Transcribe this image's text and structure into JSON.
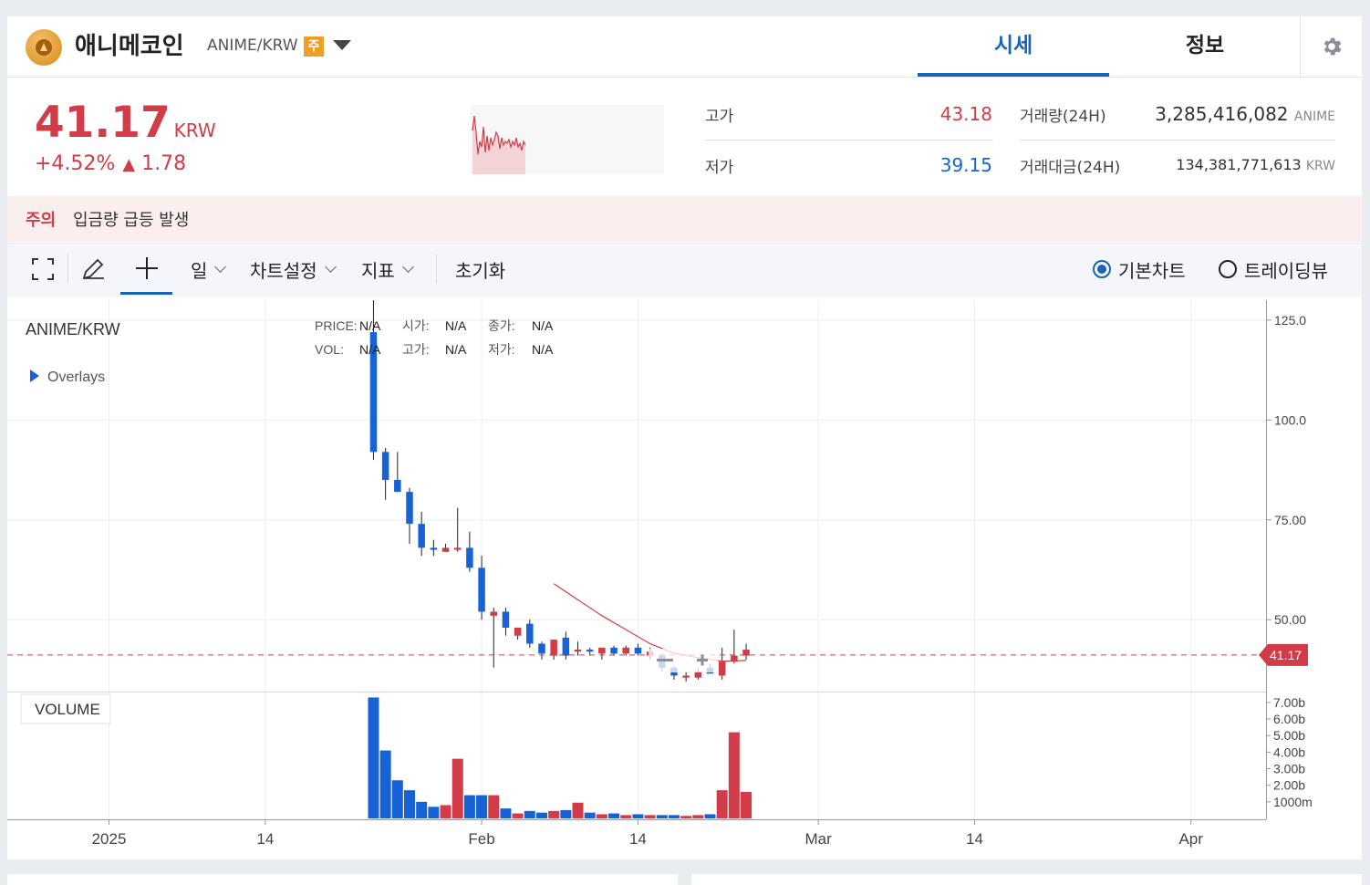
{
  "header": {
    "coin_name": "애니메코인",
    "pair": "ANIME/KRW",
    "warning_badge": "주",
    "tabs": [
      {
        "label": "시세",
        "active": true
      },
      {
        "label": "정보",
        "active": false
      }
    ]
  },
  "price": {
    "current": "41.17",
    "unit": "KRW",
    "change_pct": "+4.52%",
    "change_abs": "1.78",
    "change_arrow": "▲"
  },
  "stats": {
    "high_label": "고가",
    "high_value": "43.18",
    "low_label": "저가",
    "low_value": "39.15",
    "volume_label": "거래량(24H)",
    "volume_value": "3,285,416,082",
    "volume_unit": "ANIME",
    "amount_label": "거래대금(24H)",
    "amount_value": "134,381,771,613",
    "amount_unit": "KRW"
  },
  "notice": {
    "keyword": "주의",
    "message": "입금량 급등 발생"
  },
  "toolbar": {
    "period": "일",
    "chart_settings": "차트설정",
    "indicators": "지표",
    "reset": "초기화",
    "basic_chart": "기본차트",
    "trading_view": "트레이딩뷰"
  },
  "chart_legend": {
    "symbol": "ANIME/KRW",
    "overlays": "Overlays",
    "price_label": "PRICE:",
    "price_value": "N/A",
    "open_label": "시가:",
    "open_value": "N/A",
    "close_label": "종가:",
    "close_value": "N/A",
    "vol_label": "VOL:",
    "vol_value": "N/A",
    "high_label": "고가:",
    "high_value": "N/A",
    "low_label": "저가:",
    "low_value": "N/A",
    "volume_pane_label": "VOLUME",
    "current_price_tag": "41.17"
  },
  "colors": {
    "up": "#d23c48",
    "down": "#1763d6",
    "accent": "#1763b6"
  },
  "chart_data": {
    "type": "candlestick",
    "price_axis_ticks": [
      "125.0",
      "100.0",
      "75.00",
      "50.00"
    ],
    "volume_axis_ticks": [
      "7.00b",
      "6.00b",
      "5.00b",
      "4.00b",
      "3.00b",
      "2.00b",
      "1000m"
    ],
    "x_ticks": [
      "2025",
      "14",
      "Feb",
      "14",
      "Mar",
      "14",
      "Apr"
    ],
    "x_tick_dates": [
      "2025-01-01",
      "2025-01-14",
      "2025-02-01",
      "2025-02-14",
      "2025-03-01",
      "2025-03-14",
      "2025-04-01"
    ],
    "ylim": [
      32,
      130
    ],
    "volume_ylim": [
      0,
      7.6
    ],
    "last_price": 41.17,
    "candles": [
      {
        "date": "2025-01-23",
        "o": 122,
        "h": 130,
        "l": 90,
        "c": 92,
        "v": 7.3
      },
      {
        "date": "2025-01-24",
        "o": 92,
        "h": 93,
        "l": 80,
        "c": 85,
        "v": 4.1
      },
      {
        "date": "2025-01-25",
        "o": 85,
        "h": 92,
        "l": 82,
        "c": 82,
        "v": 2.3
      },
      {
        "date": "2025-01-26",
        "o": 82,
        "h": 83,
        "l": 69,
        "c": 74,
        "v": 1.7
      },
      {
        "date": "2025-01-27",
        "o": 74,
        "h": 77,
        "l": 66,
        "c": 68,
        "v": 1.0
      },
      {
        "date": "2025-01-28",
        "o": 68,
        "h": 70,
        "l": 66,
        "c": 67.5,
        "v": 0.7
      },
      {
        "date": "2025-01-29",
        "o": 67,
        "h": 69,
        "l": 67,
        "c": 68,
        "v": 0.8
      },
      {
        "date": "2025-01-30",
        "o": 67.5,
        "h": 78,
        "l": 67,
        "c": 68,
        "v": 3.6
      },
      {
        "date": "2025-01-31",
        "o": 68,
        "h": 72,
        "l": 62,
        "c": 63,
        "v": 1.4
      },
      {
        "date": "2025-02-01",
        "o": 63,
        "h": 66,
        "l": 50,
        "c": 52,
        "v": 1.4
      },
      {
        "date": "2025-02-02",
        "o": 51,
        "h": 53,
        "l": 38,
        "c": 52,
        "v": 1.4
      },
      {
        "date": "2025-02-03",
        "o": 52,
        "h": 53,
        "l": 46,
        "c": 48,
        "v": 0.6
      },
      {
        "date": "2025-02-04",
        "o": 46,
        "h": 48,
        "l": 45,
        "c": 48,
        "v": 0.3
      },
      {
        "date": "2025-02-05",
        "o": 49,
        "h": 50,
        "l": 43,
        "c": 44,
        "v": 0.45
      },
      {
        "date": "2025-02-06",
        "o": 44,
        "h": 44.5,
        "l": 40,
        "c": 41.5,
        "v": 0.35
      },
      {
        "date": "2025-02-07",
        "o": 41,
        "h": 45,
        "l": 40,
        "c": 45,
        "v": 0.45
      },
      {
        "date": "2025-02-08",
        "o": 45.5,
        "h": 47,
        "l": 40,
        "c": 41,
        "v": 0.5
      },
      {
        "date": "2025-02-09",
        "o": 42,
        "h": 44.5,
        "l": 41,
        "c": 42.5,
        "v": 0.95
      },
      {
        "date": "2025-02-10",
        "o": 42.5,
        "h": 43,
        "l": 41,
        "c": 42,
        "v": 0.35
      },
      {
        "date": "2025-02-11",
        "o": 41.5,
        "h": 43,
        "l": 40,
        "c": 43,
        "v": 0.25
      },
      {
        "date": "2025-02-12",
        "o": 43,
        "h": 43.5,
        "l": 41,
        "c": 41.5,
        "v": 0.3
      },
      {
        "date": "2025-02-13",
        "o": 41.5,
        "h": 43.5,
        "l": 41,
        "c": 43,
        "v": 0.2
      },
      {
        "date": "2025-02-14",
        "o": 43,
        "h": 44,
        "l": 41,
        "c": 41.5,
        "v": 0.25
      },
      {
        "date": "2025-02-15",
        "o": 41,
        "h": 43,
        "l": 40,
        "c": 42,
        "v": 0.2
      },
      {
        "date": "2025-02-16",
        "o": 41,
        "h": 41.5,
        "l": 37,
        "c": 38,
        "v": 0.2
      },
      {
        "date": "2025-02-17",
        "o": 38,
        "h": 38.5,
        "l": 35,
        "c": 36,
        "v": 0.2
      },
      {
        "date": "2025-02-18",
        "o": 35.5,
        "h": 37,
        "l": 34.5,
        "c": 36,
        "v": 0.15
      },
      {
        "date": "2025-02-19",
        "o": 35.5,
        "h": 38,
        "l": 35,
        "c": 37,
        "v": 0.2
      },
      {
        "date": "2025-02-20",
        "o": 38,
        "h": 39,
        "l": 36.5,
        "c": 36.5,
        "v": 0.25
      },
      {
        "date": "2025-02-21",
        "o": 36,
        "h": 43,
        "l": 35,
        "c": 39.5,
        "v": 1.7
      },
      {
        "date": "2025-02-22",
        "o": 39.5,
        "h": 47.5,
        "l": 39,
        "c": 41,
        "v": 5.2
      },
      {
        "date": "2025-02-23",
        "o": 41,
        "h": 44,
        "l": 40,
        "c": 42.5,
        "v": 1.6
      }
    ],
    "moving_average": [
      {
        "date": "2025-02-07",
        "v": 59
      },
      {
        "date": "2025-02-09",
        "v": 55
      },
      {
        "date": "2025-02-11",
        "v": 51
      },
      {
        "date": "2025-02-13",
        "v": 47.5
      },
      {
        "date": "2025-02-15",
        "v": 44
      },
      {
        "date": "2025-02-17",
        "v": 41.6
      },
      {
        "date": "2025-02-19",
        "v": 40.5
      },
      {
        "date": "2025-02-21",
        "v": 39.6
      },
      {
        "date": "2025-02-23",
        "v": 39.8
      }
    ]
  }
}
